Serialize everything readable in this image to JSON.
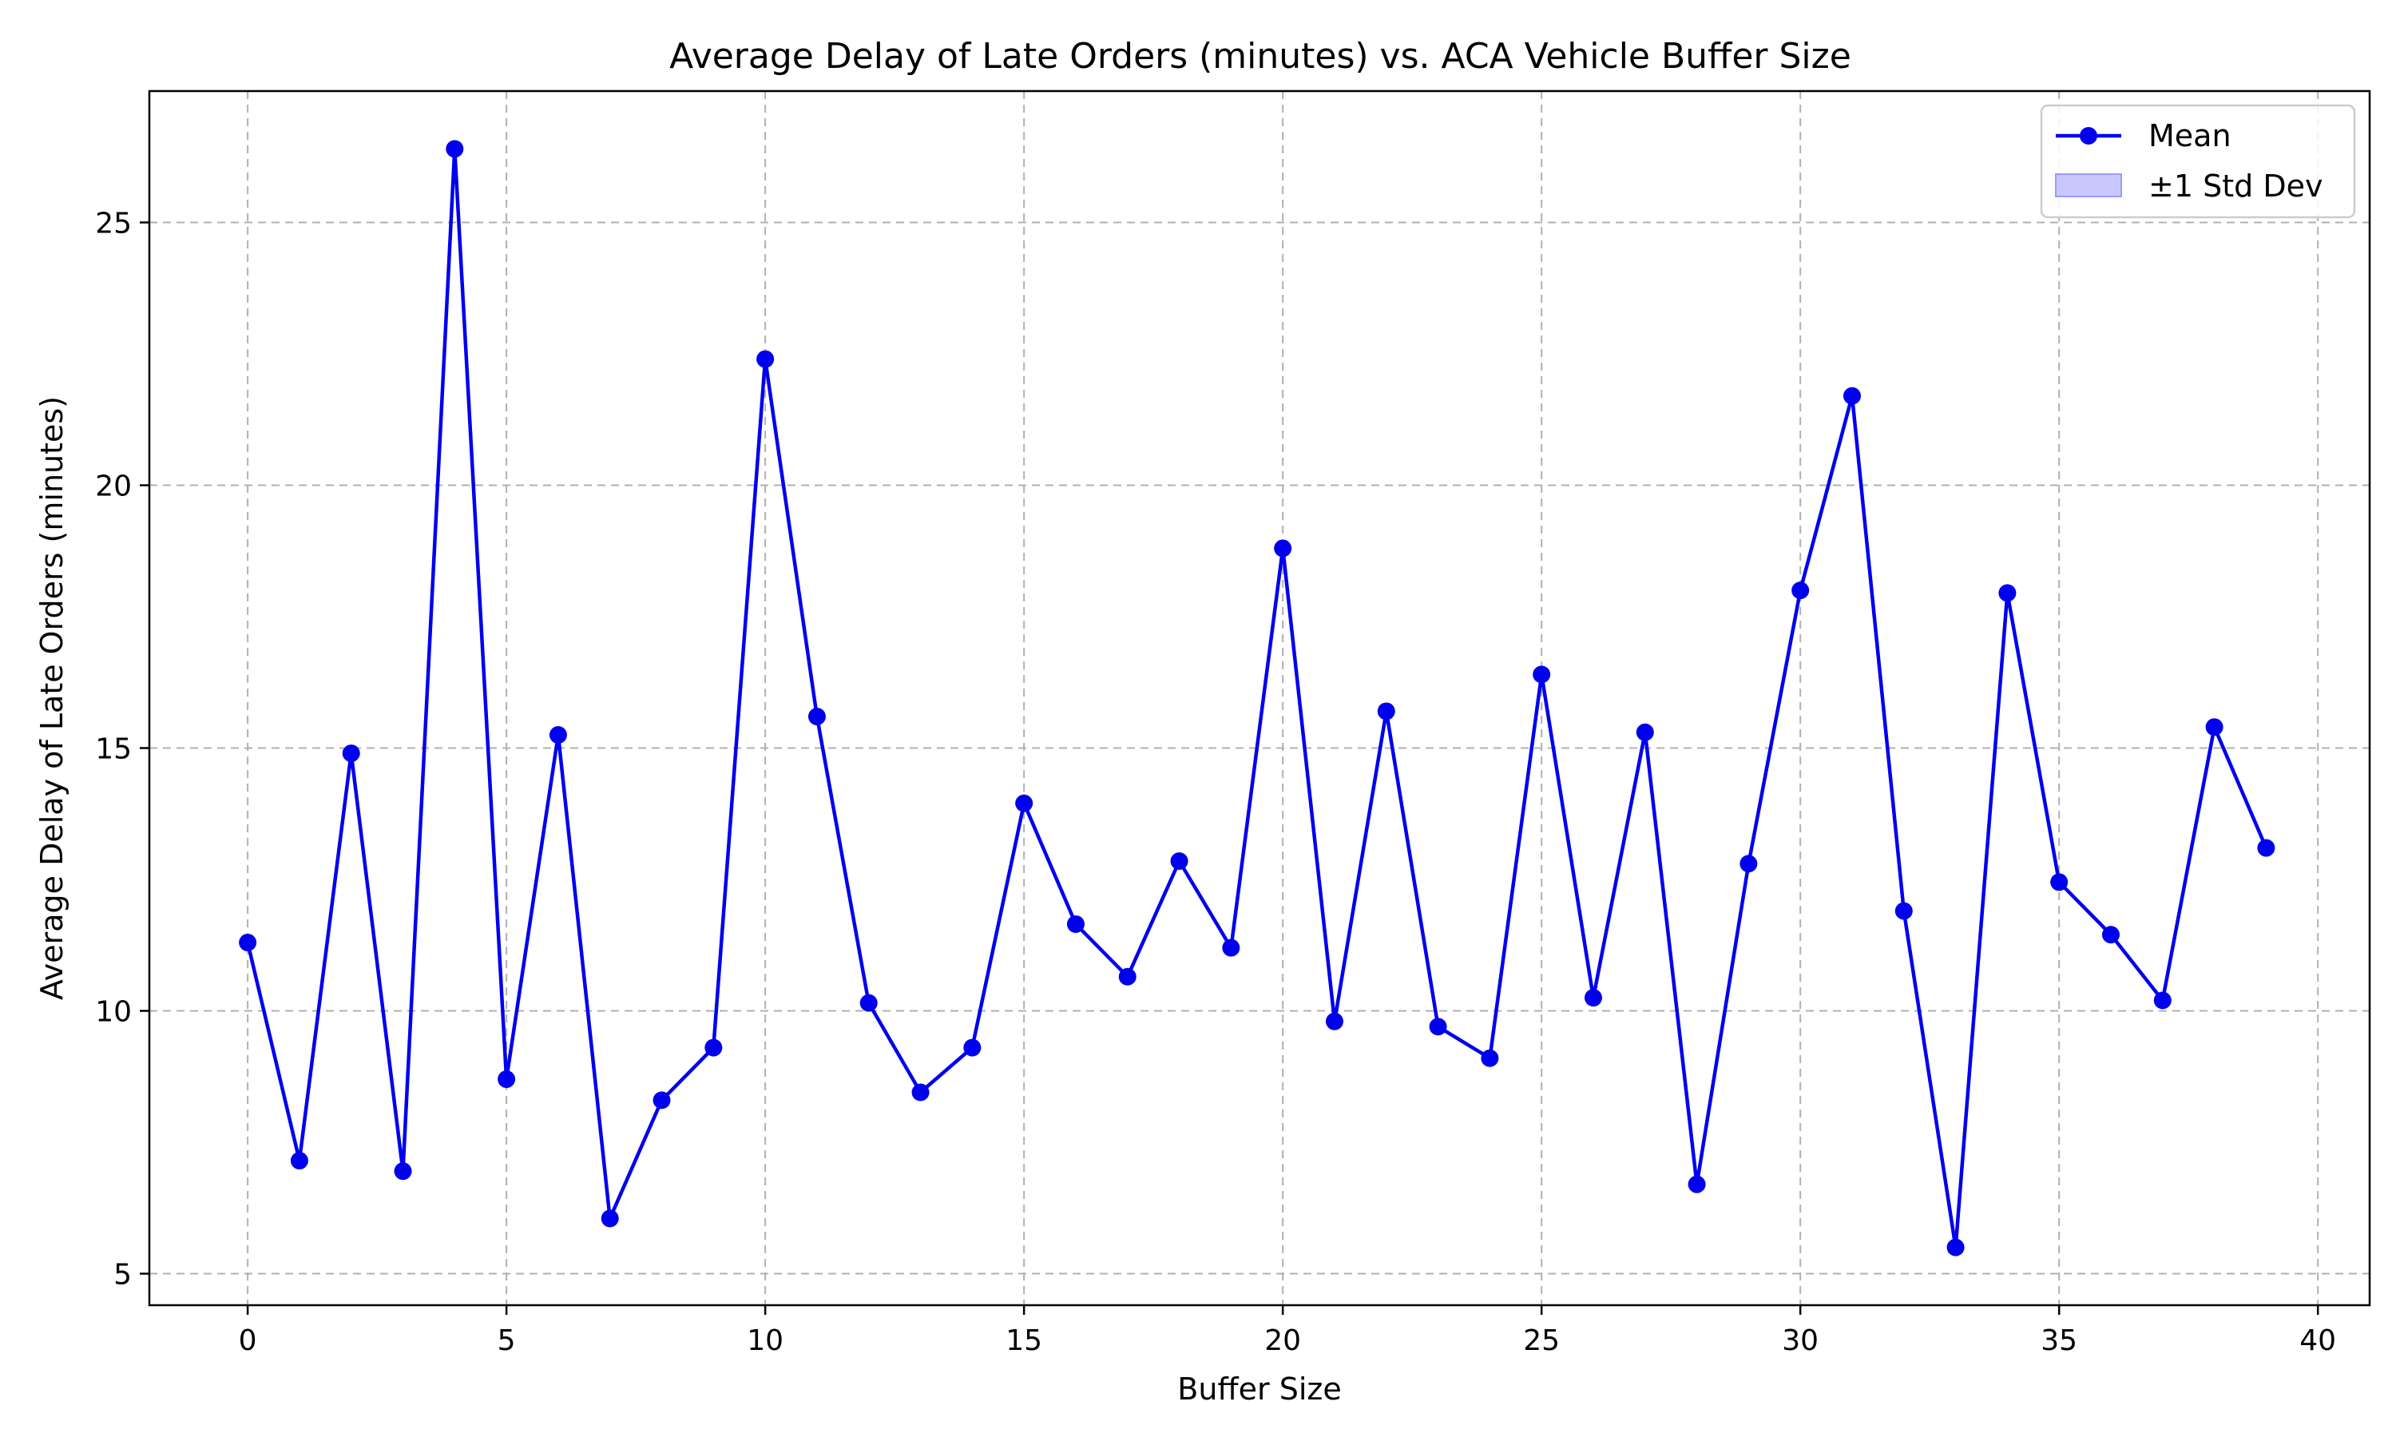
{
  "chart_data": {
    "type": "line",
    "title": "Average Delay of Late Orders (minutes) vs. ACA Vehicle Buffer Size",
    "xlabel": "Buffer Size",
    "ylabel": "Average Delay of Late Orders (minutes)",
    "xlim": [
      -1.9,
      41.0
    ],
    "ylim": [
      4.4,
      27.5
    ],
    "xticks": [
      0,
      5,
      10,
      15,
      20,
      25,
      30,
      35,
      40
    ],
    "yticks": [
      5,
      10,
      15,
      20,
      25
    ],
    "grid": true,
    "legend_position": "top-right",
    "color": "#0000ee",
    "band_color": "#c8c8ff",
    "x": [
      0,
      1,
      2,
      3,
      4,
      5,
      6,
      7,
      8,
      9,
      10,
      11,
      12,
      13,
      14,
      15,
      16,
      17,
      18,
      19,
      20,
      21,
      22,
      23,
      24,
      25,
      26,
      27,
      28,
      29,
      30,
      31,
      32,
      33,
      34,
      35,
      36,
      37,
      38,
      39
    ],
    "series": [
      {
        "name": "Mean",
        "values": [
          11.3,
          7.15,
          14.9,
          6.95,
          26.4,
          8.7,
          15.25,
          6.05,
          8.3,
          9.3,
          22.4,
          15.6,
          10.15,
          8.45,
          9.3,
          13.95,
          11.65,
          10.65,
          12.85,
          11.2,
          18.8,
          9.8,
          15.7,
          9.7,
          9.1,
          16.4,
          10.25,
          15.3,
          6.7,
          12.8,
          18.0,
          21.7,
          11.9,
          5.5,
          17.95,
          12.45,
          11.45,
          10.2,
          15.4,
          13.1
        ]
      }
    ],
    "legend": [
      "Mean",
      "±1 Std Dev"
    ]
  }
}
